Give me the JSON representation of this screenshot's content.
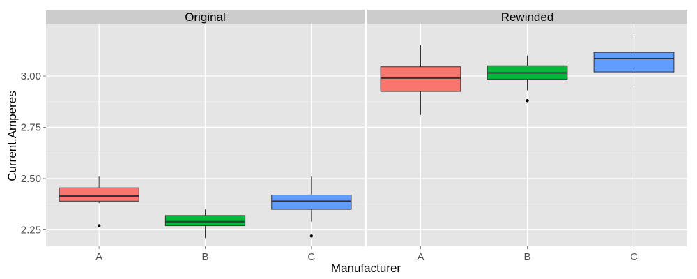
{
  "chart_data": {
    "type": "boxplot",
    "xlabel": "Manufacturer",
    "ylabel": "Current.Amperes",
    "ylim": [
      2.17,
      3.255
    ],
    "yticks": [
      2.25,
      2.5,
      2.75,
      3.0
    ],
    "ytick_labels": [
      "2.25",
      "2.50",
      "2.75",
      "3.00"
    ],
    "categories": [
      "A",
      "B",
      "C"
    ],
    "grid": true,
    "legend": "none",
    "colors": {
      "A": "#F8766D",
      "B": "#00BA38",
      "C": "#619CFF",
      "panel_background": "#E5E5E5",
      "grid_line": "#FFFFFF",
      "strip_background": "#CCCCCC",
      "outline": "#333333"
    },
    "facets": [
      {
        "title": "Original",
        "boxes": [
          {
            "category": "A",
            "q1": 2.39,
            "median": 2.415,
            "q3": 2.455,
            "whisker_low": 2.38,
            "whisker_high": 2.51,
            "outliers": [
              2.27
            ]
          },
          {
            "category": "B",
            "q1": 2.27,
            "median": 2.29,
            "q3": 2.32,
            "whisker_low": 2.21,
            "whisker_high": 2.35,
            "outliers": []
          },
          {
            "category": "C",
            "q1": 2.35,
            "median": 2.39,
            "q3": 2.42,
            "whisker_low": 2.29,
            "whisker_high": 2.51,
            "outliers": [
              2.22
            ]
          }
        ]
      },
      {
        "title": "Rewinded",
        "boxes": [
          {
            "category": "A",
            "q1": 2.925,
            "median": 2.99,
            "q3": 3.045,
            "whisker_low": 2.81,
            "whisker_high": 3.15,
            "outliers": []
          },
          {
            "category": "B",
            "q1": 2.985,
            "median": 3.015,
            "q3": 3.05,
            "whisker_low": 2.93,
            "whisker_high": 3.1,
            "outliers": [
              2.88
            ]
          },
          {
            "category": "C",
            "q1": 3.02,
            "median": 3.085,
            "q3": 3.115,
            "whisker_low": 2.94,
            "whisker_high": 3.2,
            "outliers": []
          }
        ]
      }
    ]
  }
}
